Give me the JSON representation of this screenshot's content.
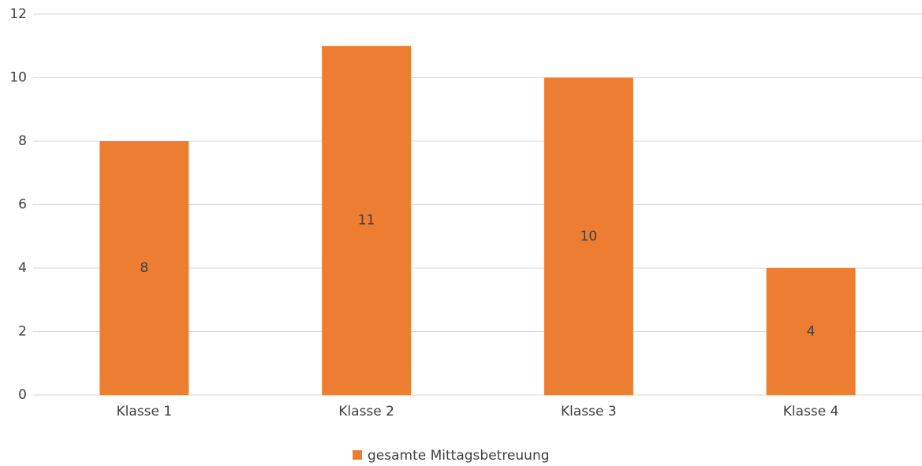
{
  "chart_data": {
    "type": "bar",
    "categories": [
      "Klasse 1",
      "Klasse 2",
      "Klasse 3",
      "Klasse 4"
    ],
    "series": [
      {
        "name": "gesamte Mittagsbetreuung",
        "color": "#ed7d31",
        "values": [
          8,
          11,
          10,
          4
        ]
      }
    ],
    "ylim": [
      0,
      12
    ],
    "yticks": [
      0,
      2,
      4,
      6,
      8,
      10,
      12
    ],
    "grid": true,
    "legend": "bottom"
  }
}
